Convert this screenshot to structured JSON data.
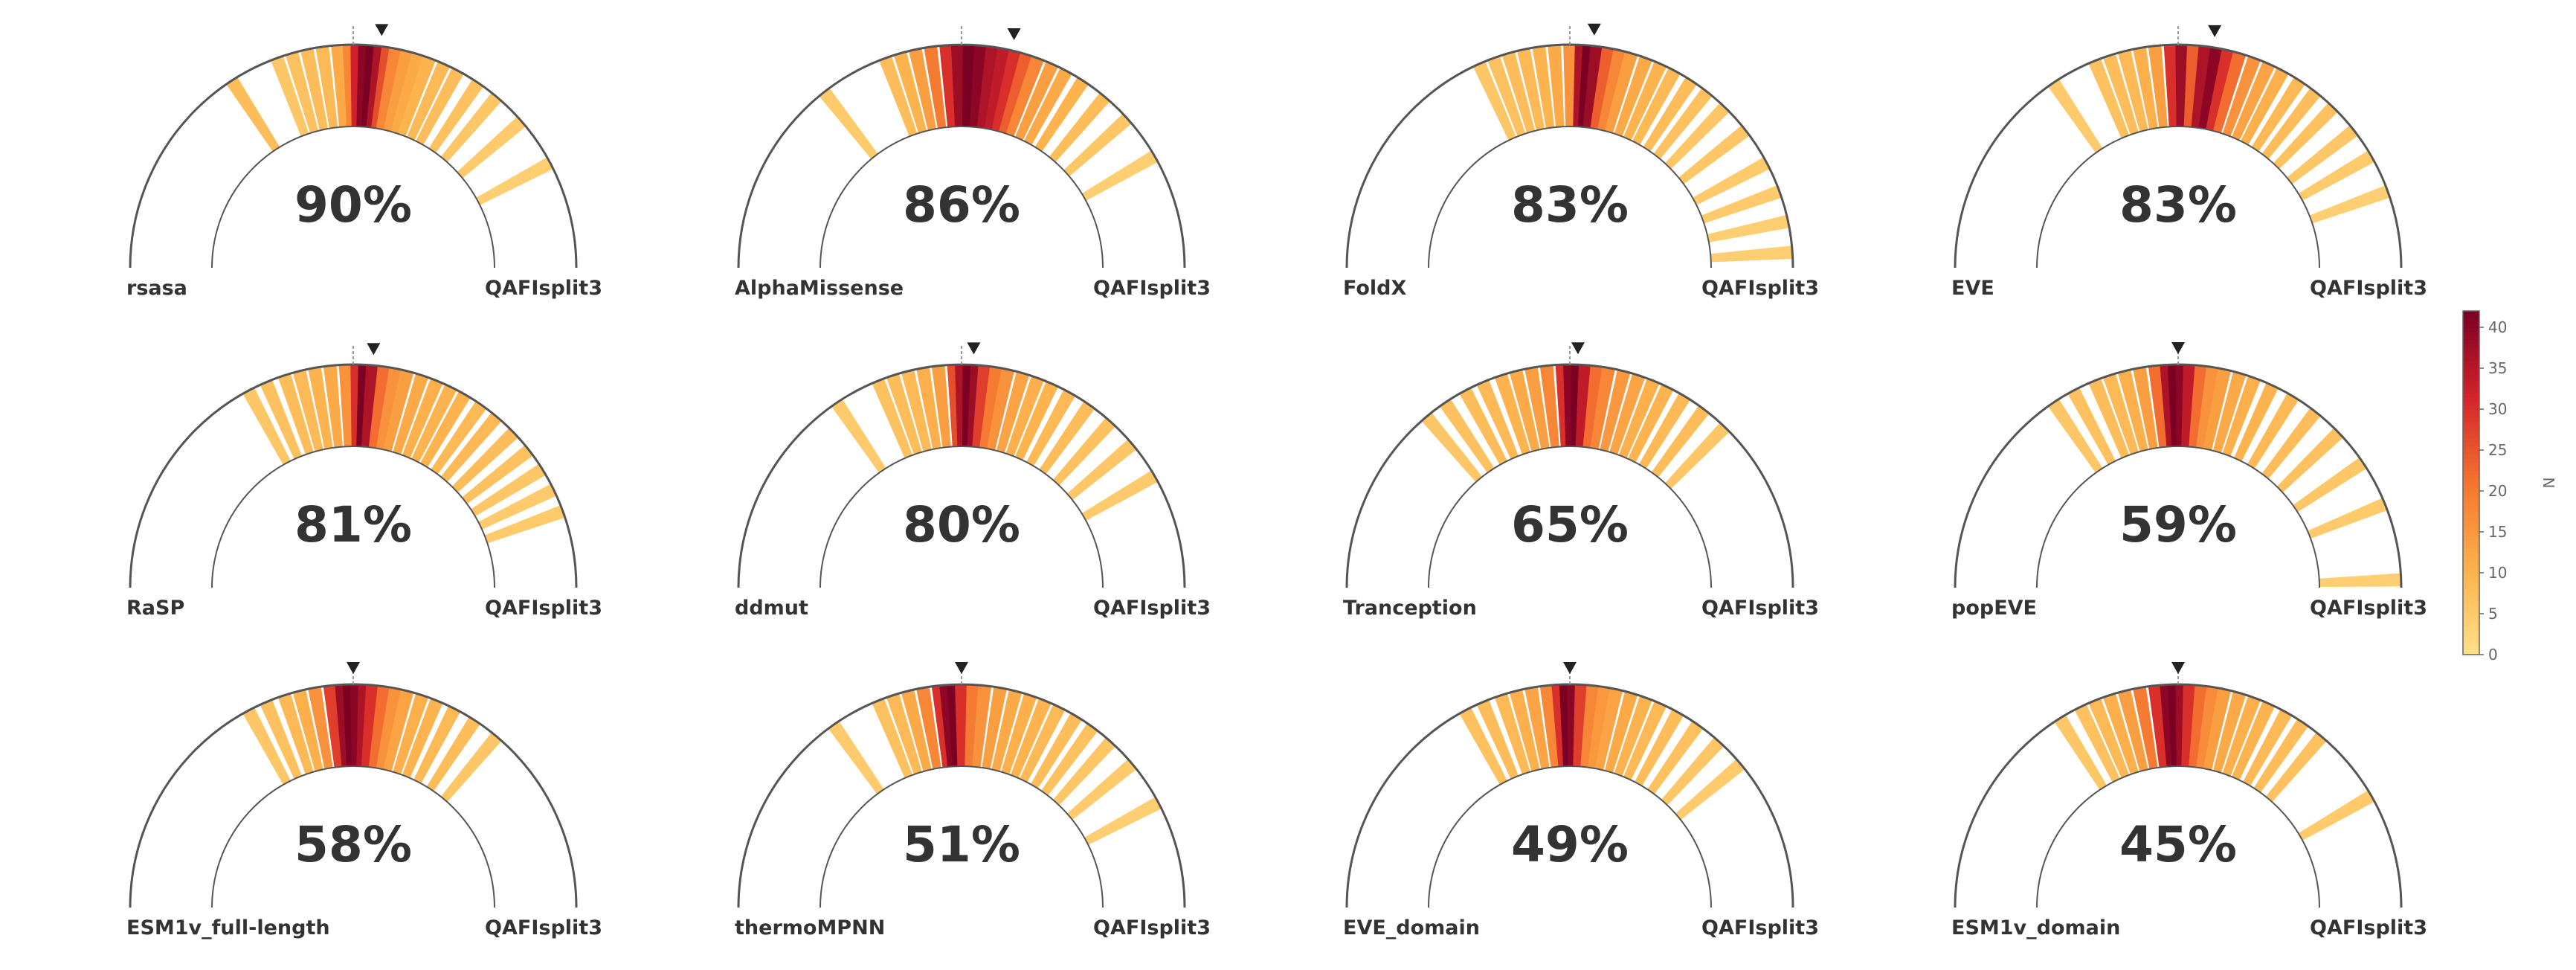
{
  "chart_data": {
    "type": "gauge",
    "panels": [
      {
        "left_label": "rsasa",
        "right_label": "QAFIsplit3",
        "value": 90,
        "value_label": "90%",
        "marker": 97,
        "angles": [
          57,
          70,
          74,
          78,
          82,
          86,
          89,
          91,
          93,
          95,
          97,
          99,
          101,
          104,
          107,
          110,
          114,
          118,
          124,
          130,
          139,
          152
        ],
        "counts": [
          8,
          6,
          7,
          8,
          9,
          12,
          18,
          32,
          40,
          42,
          36,
          26,
          18,
          14,
          12,
          10,
          9,
          8,
          7,
          6,
          5,
          4
        ]
      },
      {
        "left_label": "AlphaMissense",
        "right_label": "QAFIsplit3",
        "value": 86,
        "value_label": "86%",
        "marker": 103,
        "angles": [
          52,
          70,
          74,
          78,
          82,
          86,
          89,
          92,
          95,
          98,
          101,
          104,
          107,
          110,
          114,
          118,
          123,
          130,
          138,
          150
        ],
        "counts": [
          5,
          8,
          10,
          14,
          20,
          30,
          38,
          42,
          40,
          36,
          34,
          30,
          24,
          18,
          14,
          12,
          10,
          8,
          6,
          4
        ]
      },
      {
        "left_label": "FoldX",
        "right_label": "QAFIsplit3",
        "value": 83,
        "value_label": "83%",
        "marker": 96,
        "angles": [
          66,
          70,
          74,
          78,
          82,
          86,
          90,
          93,
          95,
          97,
          100,
          103,
          106,
          110,
          114,
          118,
          123,
          128,
          134,
          142,
          152,
          160,
          168,
          176
        ],
        "counts": [
          6,
          7,
          8,
          9,
          10,
          12,
          16,
          36,
          42,
          38,
          24,
          18,
          14,
          12,
          10,
          9,
          8,
          7,
          6,
          6,
          5,
          5,
          4,
          4
        ]
      },
      {
        "left_label": "EVE",
        "right_label": "QAFIsplit3",
        "value": 83,
        "value_label": "83%",
        "marker": 99,
        "angles": [
          56,
          68,
          72,
          76,
          80,
          84,
          88,
          91,
          94,
          97,
          100,
          103,
          106,
          110,
          114,
          118,
          123,
          128,
          134,
          142,
          150,
          160
        ],
        "counts": [
          5,
          7,
          8,
          9,
          11,
          14,
          30,
          38,
          24,
          36,
          40,
          30,
          22,
          16,
          13,
          11,
          9,
          8,
          7,
          6,
          5,
          4
        ]
      },
      {
        "left_label": "RaSP",
        "right_label": "QAFIsplit3",
        "value": 81,
        "value_label": "81%",
        "marker": 95,
        "angles": [
          62,
          67,
          72,
          76,
          80,
          84,
          88,
          91,
          93,
          95,
          98,
          101,
          104,
          108,
          112,
          116,
          120,
          125,
          130,
          136,
          142,
          148,
          154,
          160
        ],
        "counts": [
          6,
          7,
          8,
          9,
          10,
          12,
          16,
          30,
          42,
          36,
          22,
          16,
          14,
          12,
          11,
          10,
          10,
          9,
          9,
          8,
          7,
          6,
          5,
          5
        ]
      },
      {
        "left_label": "ddmut",
        "right_label": "QAFIsplit3",
        "value": 80,
        "value_label": "80%",
        "marker": 93,
        "angles": [
          56,
          68,
          72,
          76,
          80,
          84,
          88,
          90,
          92,
          94,
          96,
          99,
          102,
          106,
          110,
          114,
          119,
          125,
          132,
          140,
          150
        ],
        "counts": [
          5,
          7,
          8,
          9,
          11,
          14,
          26,
          36,
          42,
          38,
          28,
          20,
          16,
          13,
          11,
          10,
          9,
          8,
          7,
          6,
          5
        ]
      },
      {
        "left_label": "Tranception",
        "right_label": "QAFIsplit3",
        "value": 65,
        "value_label": "65%",
        "marker": 92,
        "angles": [
          50,
          56,
          62,
          67,
          72,
          76,
          80,
          84,
          88,
          90,
          92,
          94,
          97,
          100,
          104,
          108,
          112,
          116,
          121,
          127,
          134
        ],
        "counts": [
          6,
          7,
          8,
          9,
          10,
          12,
          14,
          18,
          30,
          40,
          42,
          34,
          22,
          18,
          15,
          13,
          11,
          10,
          9,
          8,
          6
        ]
      },
      {
        "left_label": "popEVE",
        "right_label": "QAFIsplit3",
        "value": 59,
        "value_label": "59%",
        "marker": 90,
        "angles": [
          56,
          62,
          68,
          72,
          76,
          80,
          84,
          87,
          89,
          91,
          93,
          96,
          99,
          102,
          106,
          110,
          115,
          121,
          128,
          136,
          146,
          158,
          178
        ],
        "counts": [
          6,
          7,
          8,
          9,
          11,
          14,
          22,
          36,
          42,
          40,
          34,
          22,
          16,
          14,
          12,
          11,
          10,
          9,
          8,
          7,
          6,
          5,
          4
        ]
      },
      {
        "left_label": "ESM1v_full-length",
        "right_label": "QAFIsplit3",
        "value": 58,
        "value_label": "58%",
        "marker": 90,
        "angles": [
          62,
          67,
          72,
          76,
          80,
          84,
          87,
          89,
          91,
          93,
          95,
          98,
          101,
          104,
          108,
          112,
          117,
          123,
          130
        ],
        "counts": [
          6,
          7,
          9,
          11,
          16,
          28,
          38,
          42,
          40,
          36,
          30,
          22,
          16,
          13,
          11,
          10,
          9,
          8,
          6
        ]
      },
      {
        "left_label": "thermoMPNN",
        "right_label": "QAFIsplit3",
        "value": 51,
        "value_label": "51%",
        "marker": 90,
        "angles": [
          55,
          68,
          72,
          76,
          80,
          84,
          86,
          88,
          90,
          93,
          96,
          100,
          104,
          108,
          112,
          116,
          121,
          126,
          132,
          140,
          152
        ],
        "counts": [
          5,
          7,
          9,
          12,
          18,
          30,
          40,
          42,
          30,
          20,
          16,
          14,
          12,
          11,
          10,
          9,
          8,
          7,
          6,
          5,
          4
        ]
      },
      {
        "left_label": "EVE_domain",
        "right_label": "QAFIsplit3",
        "value": 49,
        "value_label": "49%",
        "marker": 90,
        "angles": [
          62,
          67,
          72,
          76,
          80,
          84,
          87,
          89,
          91,
          93,
          96,
          99,
          102,
          106,
          110,
          114,
          119,
          125,
          132,
          140
        ],
        "counts": [
          7,
          8,
          9,
          11,
          13,
          18,
          30,
          42,
          40,
          28,
          18,
          15,
          13,
          12,
          10,
          9,
          8,
          7,
          6,
          5
        ]
      },
      {
        "left_label": "ESM1v_domain",
        "right_label": "QAFIsplit3",
        "value": 45,
        "value_label": "45%",
        "marker": 90,
        "angles": [
          58,
          64,
          68,
          72,
          76,
          80,
          84,
          87,
          89,
          91,
          93,
          96,
          99,
          102,
          106,
          110,
          114,
          119,
          124,
          130,
          150
        ],
        "counts": [
          6,
          7,
          9,
          11,
          14,
          20,
          30,
          40,
          42,
          38,
          30,
          22,
          17,
          14,
          12,
          11,
          10,
          9,
          8,
          7,
          5
        ]
      }
    ],
    "colorbar": {
      "label": "N",
      "clim": [
        0,
        42
      ],
      "ticks": [
        0,
        5,
        10,
        15,
        20,
        25,
        30,
        35,
        40
      ],
      "colors": [
        "#fee089",
        "#fdb24c",
        "#f5752f",
        "#d4232a",
        "#7a0024"
      ]
    }
  }
}
